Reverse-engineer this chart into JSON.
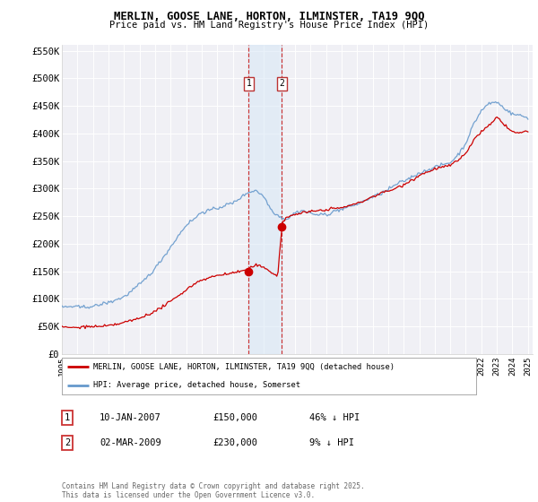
{
  "title": "MERLIN, GOOSE LANE, HORTON, ILMINSTER, TA19 9QQ",
  "subtitle": "Price paid vs. HM Land Registry's House Price Index (HPI)",
  "ylim": [
    0,
    560000
  ],
  "yticks": [
    0,
    50000,
    100000,
    150000,
    200000,
    250000,
    300000,
    350000,
    400000,
    450000,
    500000,
    550000
  ],
  "ytick_labels": [
    "£0",
    "£50K",
    "£100K",
    "£150K",
    "£200K",
    "£250K",
    "£300K",
    "£350K",
    "£400K",
    "£450K",
    "£500K",
    "£550K"
  ],
  "background_color": "#ffffff",
  "plot_bg_color": "#f0f0f5",
  "grid_color": "#ffffff",
  "t1_year": 2007.027,
  "t2_year": 2009.164,
  "t1_price": 150000,
  "t2_price": 230000,
  "transaction1_date_str": "10-JAN-2007",
  "transaction2_date_str": "02-MAR-2009",
  "transaction1_pct": "46% ↓ HPI",
  "transaction2_pct": "9% ↓ HPI",
  "legend_line1": "MERLIN, GOOSE LANE, HORTON, ILMINSTER, TA19 9QQ (detached house)",
  "legend_line2": "HPI: Average price, detached house, Somerset",
  "footer": "Contains HM Land Registry data © Crown copyright and database right 2025.\nThis data is licensed under the Open Government Licence v3.0.",
  "red_color": "#cc0000",
  "blue_color": "#6699cc",
  "shade_color": "#d8e8f5",
  "xtick_years": [
    1995,
    1996,
    1997,
    1998,
    1999,
    2000,
    2001,
    2002,
    2003,
    2004,
    2005,
    2006,
    2007,
    2008,
    2009,
    2010,
    2011,
    2012,
    2013,
    2014,
    2015,
    2016,
    2017,
    2018,
    2019,
    2020,
    2021,
    2022,
    2023,
    2024,
    2025
  ]
}
